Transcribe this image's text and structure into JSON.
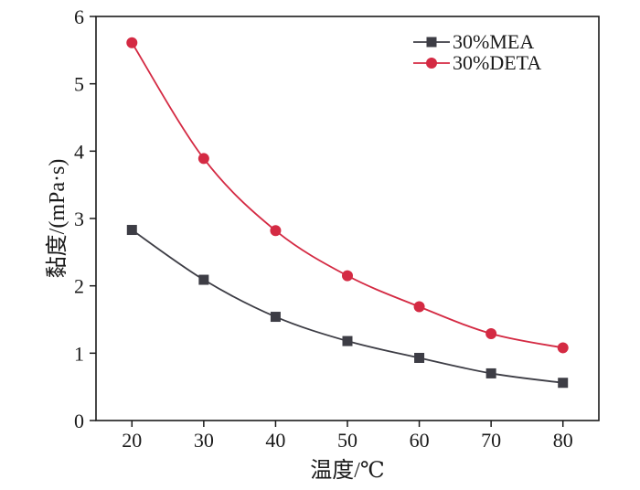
{
  "chart_data": {
    "type": "line",
    "xlabel": "温度/℃",
    "ylabel": "黏度/(mPa·s)",
    "xlim": [
      15,
      85
    ],
    "ylim": [
      0,
      6
    ],
    "xticks": [
      20,
      30,
      40,
      50,
      60,
      70,
      80
    ],
    "yticks": [
      0,
      1,
      2,
      3,
      4,
      5,
      6
    ],
    "grid": false,
    "legend_position": "top-right",
    "series": [
      {
        "name": "30%MEA",
        "marker": "square",
        "color": "#3d3d45",
        "x": [
          20,
          30,
          40,
          50,
          60,
          70,
          80
        ],
        "values": [
          2.83,
          2.09,
          1.54,
          1.18,
          0.93,
          0.7,
          0.56
        ]
      },
      {
        "name": "30%DETA",
        "marker": "circle",
        "color": "#d42a43",
        "x": [
          20,
          30,
          40,
          50,
          60,
          70,
          80
        ],
        "values": [
          5.61,
          3.89,
          2.82,
          2.15,
          1.69,
          1.29,
          1.08
        ]
      }
    ]
  }
}
